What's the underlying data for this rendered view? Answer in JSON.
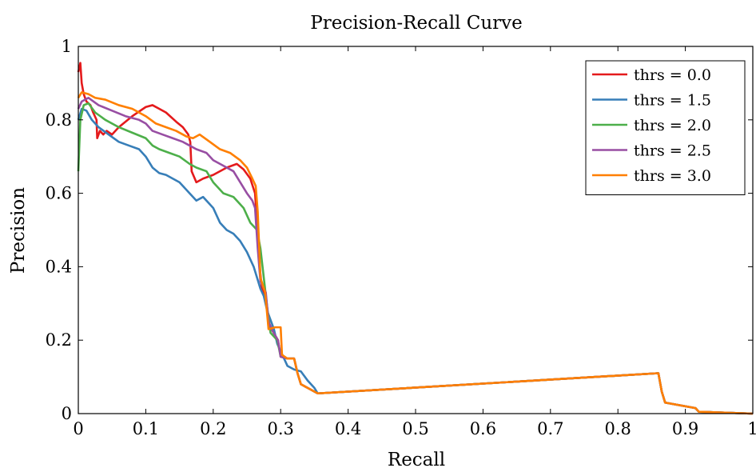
{
  "chart_data": {
    "type": "line",
    "title": "Precision-Recall Curve",
    "xlabel": "Recall",
    "ylabel": "Precision",
    "xlim": [
      0,
      1
    ],
    "ylim": [
      0,
      1
    ],
    "xticks": [
      0,
      0.1,
      0.2,
      0.3,
      0.4,
      0.5,
      0.6,
      0.7,
      0.8,
      0.9,
      1
    ],
    "xtick_labels": [
      "0",
      "0.1",
      "0.2",
      "0.3",
      "0.4",
      "0.5",
      "0.6",
      "0.7",
      "0.8",
      "0.9",
      "1"
    ],
    "yticks": [
      0,
      0.2,
      0.4,
      0.6,
      0.8,
      1
    ],
    "ytick_labels": [
      "0",
      "0.2",
      "0.4",
      "0.6",
      "0.8",
      "1"
    ],
    "grid": false,
    "legend_position": "top-right",
    "series": [
      {
        "name": "thrs = 0.0",
        "color": "#e41a1c",
        "points": [
          [
            0,
            0.93
          ],
          [
            0.003,
            0.955
          ],
          [
            0.005,
            0.9
          ],
          [
            0.008,
            0.87
          ],
          [
            0.012,
            0.85
          ],
          [
            0.018,
            0.84
          ],
          [
            0.022,
            0.82
          ],
          [
            0.027,
            0.8
          ],
          [
            0.028,
            0.75
          ],
          [
            0.032,
            0.77
          ],
          [
            0.037,
            0.76
          ],
          [
            0.042,
            0.77
          ],
          [
            0.05,
            0.76
          ],
          [
            0.06,
            0.78
          ],
          [
            0.08,
            0.81
          ],
          [
            0.1,
            0.835
          ],
          [
            0.11,
            0.84
          ],
          [
            0.12,
            0.83
          ],
          [
            0.13,
            0.82
          ],
          [
            0.145,
            0.795
          ],
          [
            0.155,
            0.78
          ],
          [
            0.163,
            0.76
          ],
          [
            0.166,
            0.74
          ],
          [
            0.168,
            0.66
          ],
          [
            0.175,
            0.63
          ],
          [
            0.185,
            0.64
          ],
          [
            0.2,
            0.65
          ],
          [
            0.22,
            0.67
          ],
          [
            0.235,
            0.68
          ],
          [
            0.245,
            0.665
          ],
          [
            0.255,
            0.64
          ],
          [
            0.262,
            0.6
          ],
          [
            0.265,
            0.52
          ],
          [
            0.268,
            0.42
          ],
          [
            0.272,
            0.34
          ],
          [
            0.278,
            0.32
          ],
          [
            0.282,
            0.25
          ],
          [
            0.288,
            0.225
          ],
          [
            0.296,
            0.2
          ],
          [
            0.3,
            0.155
          ],
          [
            0.31,
            0.15
          ],
          [
            0.32,
            0.15
          ],
          [
            0.325,
            0.11
          ],
          [
            0.33,
            0.08
          ],
          [
            0.34,
            0.07
          ],
          [
            0.35,
            0.06
          ],
          [
            0.355,
            0.055
          ],
          [
            0.86,
            0.11
          ],
          [
            0.865,
            0.06
          ],
          [
            0.87,
            0.03
          ],
          [
            0.915,
            0.015
          ],
          [
            0.92,
            0.005
          ],
          [
            1,
            0
          ]
        ]
      },
      {
        "name": "thrs = 1.5",
        "color": "#377eb8",
        "points": [
          [
            0,
            0.8
          ],
          [
            0.005,
            0.83
          ],
          [
            0.012,
            0.825
          ],
          [
            0.02,
            0.8
          ],
          [
            0.03,
            0.78
          ],
          [
            0.045,
            0.76
          ],
          [
            0.06,
            0.74
          ],
          [
            0.075,
            0.73
          ],
          [
            0.09,
            0.72
          ],
          [
            0.1,
            0.7
          ],
          [
            0.11,
            0.67
          ],
          [
            0.12,
            0.655
          ],
          [
            0.13,
            0.65
          ],
          [
            0.14,
            0.64
          ],
          [
            0.15,
            0.63
          ],
          [
            0.165,
            0.6
          ],
          [
            0.175,
            0.58
          ],
          [
            0.185,
            0.59
          ],
          [
            0.2,
            0.56
          ],
          [
            0.21,
            0.52
          ],
          [
            0.22,
            0.5
          ],
          [
            0.23,
            0.49
          ],
          [
            0.24,
            0.47
          ],
          [
            0.25,
            0.44
          ],
          [
            0.26,
            0.4
          ],
          [
            0.265,
            0.37
          ],
          [
            0.27,
            0.34
          ],
          [
            0.275,
            0.32
          ],
          [
            0.28,
            0.28
          ],
          [
            0.29,
            0.23
          ],
          [
            0.295,
            0.19
          ],
          [
            0.3,
            0.17
          ],
          [
            0.31,
            0.13
          ],
          [
            0.32,
            0.12
          ],
          [
            0.33,
            0.115
          ],
          [
            0.34,
            0.09
          ],
          [
            0.35,
            0.07
          ],
          [
            0.355,
            0.055
          ],
          [
            0.86,
            0.11
          ],
          [
            0.865,
            0.06
          ],
          [
            0.87,
            0.03
          ],
          [
            0.915,
            0.015
          ],
          [
            0.92,
            0.005
          ],
          [
            1,
            0
          ]
        ]
      },
      {
        "name": "thrs = 2.0",
        "color": "#4daf4a",
        "points": [
          [
            0,
            0.66
          ],
          [
            0.003,
            0.8
          ],
          [
            0.008,
            0.84
          ],
          [
            0.015,
            0.845
          ],
          [
            0.025,
            0.82
          ],
          [
            0.04,
            0.8
          ],
          [
            0.06,
            0.78
          ],
          [
            0.08,
            0.765
          ],
          [
            0.1,
            0.75
          ],
          [
            0.11,
            0.73
          ],
          [
            0.12,
            0.72
          ],
          [
            0.135,
            0.71
          ],
          [
            0.15,
            0.7
          ],
          [
            0.165,
            0.68
          ],
          [
            0.175,
            0.67
          ],
          [
            0.19,
            0.66
          ],
          [
            0.2,
            0.63
          ],
          [
            0.215,
            0.6
          ],
          [
            0.23,
            0.59
          ],
          [
            0.245,
            0.56
          ],
          [
            0.255,
            0.52
          ],
          [
            0.265,
            0.5
          ],
          [
            0.27,
            0.45
          ],
          [
            0.275,
            0.37
          ],
          [
            0.28,
            0.29
          ],
          [
            0.285,
            0.22
          ],
          [
            0.295,
            0.2
          ],
          [
            0.3,
            0.155
          ],
          [
            0.31,
            0.15
          ],
          [
            0.32,
            0.15
          ],
          [
            0.325,
            0.11
          ],
          [
            0.33,
            0.08
          ],
          [
            0.34,
            0.07
          ],
          [
            0.35,
            0.06
          ],
          [
            0.355,
            0.055
          ],
          [
            0.86,
            0.11
          ],
          [
            0.865,
            0.06
          ],
          [
            0.87,
            0.03
          ],
          [
            0.915,
            0.015
          ],
          [
            0.92,
            0.005
          ],
          [
            1,
            0
          ]
        ]
      },
      {
        "name": "thrs = 2.5",
        "color": "#984ea3",
        "points": [
          [
            0,
            0.83
          ],
          [
            0.005,
            0.85
          ],
          [
            0.015,
            0.86
          ],
          [
            0.03,
            0.84
          ],
          [
            0.05,
            0.825
          ],
          [
            0.07,
            0.81
          ],
          [
            0.09,
            0.8
          ],
          [
            0.1,
            0.79
          ],
          [
            0.11,
            0.77
          ],
          [
            0.125,
            0.76
          ],
          [
            0.14,
            0.75
          ],
          [
            0.155,
            0.74
          ],
          [
            0.165,
            0.73
          ],
          [
            0.175,
            0.72
          ],
          [
            0.19,
            0.71
          ],
          [
            0.2,
            0.69
          ],
          [
            0.215,
            0.675
          ],
          [
            0.23,
            0.66
          ],
          [
            0.24,
            0.63
          ],
          [
            0.25,
            0.6
          ],
          [
            0.258,
            0.58
          ],
          [
            0.262,
            0.56
          ],
          [
            0.266,
            0.45
          ],
          [
            0.27,
            0.36
          ],
          [
            0.278,
            0.33
          ],
          [
            0.282,
            0.25
          ],
          [
            0.288,
            0.225
          ],
          [
            0.296,
            0.2
          ],
          [
            0.3,
            0.155
          ],
          [
            0.31,
            0.15
          ],
          [
            0.32,
            0.15
          ],
          [
            0.325,
            0.11
          ],
          [
            0.33,
            0.08
          ],
          [
            0.34,
            0.07
          ],
          [
            0.35,
            0.06
          ],
          [
            0.355,
            0.055
          ],
          [
            0.86,
            0.11
          ],
          [
            0.865,
            0.06
          ],
          [
            0.87,
            0.03
          ],
          [
            0.915,
            0.015
          ],
          [
            0.92,
            0.005
          ],
          [
            1,
            0
          ]
        ]
      },
      {
        "name": "thrs = 3.0",
        "color": "#ff7f00",
        "points": [
          [
            0,
            0.86
          ],
          [
            0.005,
            0.875
          ],
          [
            0.015,
            0.87
          ],
          [
            0.025,
            0.86
          ],
          [
            0.04,
            0.855
          ],
          [
            0.06,
            0.84
          ],
          [
            0.08,
            0.83
          ],
          [
            0.1,
            0.81
          ],
          [
            0.115,
            0.79
          ],
          [
            0.13,
            0.78
          ],
          [
            0.145,
            0.77
          ],
          [
            0.16,
            0.755
          ],
          [
            0.17,
            0.75
          ],
          [
            0.18,
            0.76
          ],
          [
            0.195,
            0.74
          ],
          [
            0.21,
            0.72
          ],
          [
            0.225,
            0.71
          ],
          [
            0.24,
            0.69
          ],
          [
            0.25,
            0.67
          ],
          [
            0.258,
            0.64
          ],
          [
            0.263,
            0.62
          ],
          [
            0.266,
            0.55
          ],
          [
            0.27,
            0.37
          ],
          [
            0.277,
            0.33
          ],
          [
            0.282,
            0.23
          ],
          [
            0.292,
            0.235
          ],
          [
            0.3,
            0.235
          ],
          [
            0.302,
            0.16
          ],
          [
            0.31,
            0.15
          ],
          [
            0.32,
            0.15
          ],
          [
            0.325,
            0.11
          ],
          [
            0.33,
            0.08
          ],
          [
            0.34,
            0.07
          ],
          [
            0.35,
            0.06
          ],
          [
            0.355,
            0.055
          ],
          [
            0.86,
            0.11
          ],
          [
            0.865,
            0.06
          ],
          [
            0.87,
            0.03
          ],
          [
            0.915,
            0.015
          ],
          [
            0.92,
            0.005
          ],
          [
            1,
            0
          ]
        ]
      }
    ]
  }
}
